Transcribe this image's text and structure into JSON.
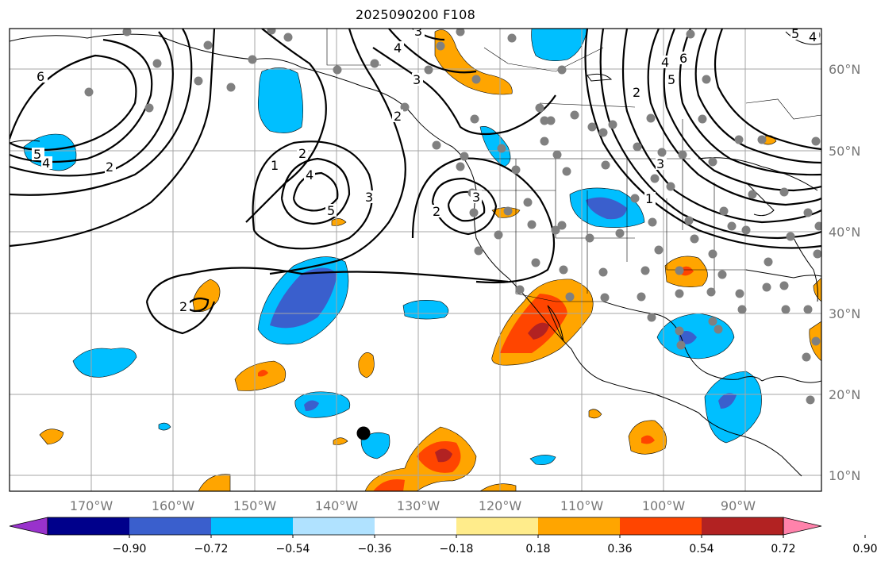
{
  "title": "2025090200 F108",
  "map": {
    "lon_labels": [
      "170°W",
      "160°W",
      "150°W",
      "140°W",
      "130°W",
      "120°W",
      "110°W",
      "100°W",
      "90°W"
    ],
    "lat_labels": [
      "60°N",
      "50°N",
      "40°N",
      "30°N",
      "20°N",
      "10°N"
    ],
    "contour_labels": [
      "6",
      "5",
      "4",
      "2",
      "1",
      "2",
      "4",
      "5",
      "3",
      "3",
      "4",
      "3",
      "2",
      "3",
      "2",
      "2",
      "4",
      "5",
      "6",
      "1",
      "2",
      "3",
      "4",
      "5"
    ]
  },
  "colorbar": {
    "ticks": [
      "−0.90",
      "−0.72",
      "−0.54",
      "−0.36",
      "−0.18",
      "0.18",
      "0.36",
      "0.54",
      "0.72",
      "0.90"
    ],
    "colors": [
      "#9932cc",
      "#00008b",
      "#3a5fcd",
      "#00bfff",
      "#b0e2ff",
      "#ffffff",
      "#ffec8b",
      "#ffa500",
      "#ff4500",
      "#b22222",
      "#ff82ab"
    ]
  }
}
